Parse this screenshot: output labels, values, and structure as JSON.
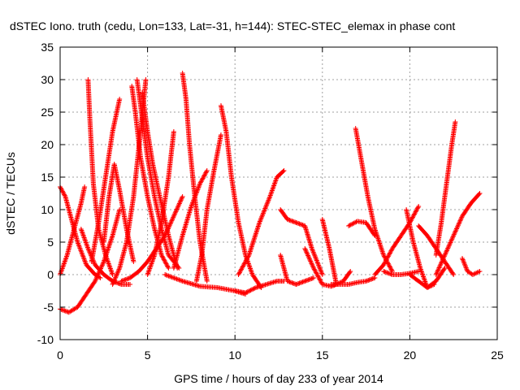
{
  "chart_data": {
    "type": "scatter",
    "title": "dSTEC Iono. truth (cedu, Lon=133, Lat=-31, h=144): STEC-STEC_elemax in phase cont",
    "xlabel": "GPS time / hours of day 233 of year 2014",
    "ylabel": "dSTEC  / TECUs",
    "xlim": [
      0,
      25
    ],
    "ylim": [
      -10,
      35
    ],
    "xticks": [
      0,
      5,
      10,
      15,
      20,
      25
    ],
    "yticks": [
      -10,
      -5,
      0,
      5,
      10,
      15,
      20,
      25,
      30,
      35
    ],
    "grid": true,
    "marker": "plus",
    "color": "#ff0000",
    "series": [
      {
        "x": [
          0.0,
          0.5,
          1.0,
          1.5,
          2.0,
          2.5,
          3.0,
          3.4
        ],
        "y": [
          -5.3,
          -5.8,
          -5.0,
          -3.0,
          -1.0,
          2.0,
          6.0,
          10.0
        ]
      },
      {
        "x": [
          0.0,
          0.3,
          0.6,
          1.0,
          1.5,
          2.0,
          2.3
        ],
        "y": [
          13.5,
          12.0,
          9.0,
          5.0,
          1.5,
          0.0,
          -0.5
        ]
      },
      {
        "x": [
          0.0,
          0.4,
          0.8,
          1.2,
          1.4
        ],
        "y": [
          0.0,
          3.0,
          7.0,
          11.0,
          13.5
        ]
      },
      {
        "x": [
          1.2,
          1.6,
          2.0,
          2.5,
          3.0,
          3.5,
          4.0
        ],
        "y": [
          7.0,
          4.0,
          1.5,
          0.0,
          -1.0,
          -1.5,
          -1.5
        ]
      },
      {
        "x": [
          1.6,
          1.7,
          1.9,
          2.2,
          2.6,
          3.0
        ],
        "y": [
          30.0,
          24.0,
          14.0,
          7.0,
          3.0,
          0.0
        ]
      },
      {
        "x": [
          1.8,
          2.2,
          2.6,
          3.0,
          3.4
        ],
        "y": [
          2.0,
          8.0,
          15.0,
          22.0,
          27.0
        ]
      },
      {
        "x": [
          2.5,
          2.8,
          3.1,
          3.4,
          3.8,
          4.2
        ],
        "y": [
          5.0,
          12.0,
          17.0,
          13.0,
          7.0,
          2.0
        ]
      },
      {
        "x": [
          3.0,
          3.4,
          3.8,
          4.2,
          4.6,
          4.9
        ],
        "y": [
          -1.5,
          1.0,
          5.0,
          12.0,
          22.0,
          30.0
        ]
      },
      {
        "x": [
          4.1,
          4.3,
          4.6,
          5.0,
          5.4,
          5.8,
          6.2
        ],
        "y": [
          29.0,
          25.0,
          18.0,
          12.0,
          7.0,
          3.0,
          1.0
        ]
      },
      {
        "x": [
          4.4,
          4.7,
          5.0,
          5.4,
          5.8,
          6.2,
          6.8
        ],
        "y": [
          30.0,
          24.0,
          18.0,
          12.0,
          7.0,
          3.0,
          1.0
        ]
      },
      {
        "x": [
          4.7,
          5.0,
          5.3,
          5.7,
          6.2,
          6.7
        ],
        "y": [
          28.0,
          22.0,
          17.0,
          12.0,
          6.0,
          1.0
        ]
      },
      {
        "x": [
          5.0,
          5.4,
          5.8,
          6.2,
          6.5
        ],
        "y": [
          0.0,
          3.0,
          8.0,
          15.0,
          22.0
        ]
      },
      {
        "x": [
          3.5,
          4.0,
          4.5,
          5.0,
          5.5,
          6.0,
          6.5,
          7.0
        ],
        "y": [
          -1.0,
          -0.5,
          0.5,
          2.0,
          4.0,
          6.0,
          9.0,
          12.0
        ]
      },
      {
        "x": [
          7.0,
          7.2,
          7.4,
          7.7,
          8.0,
          8.4
        ],
        "y": [
          31.0,
          27.0,
          20.0,
          12.0,
          5.0,
          -1.0
        ]
      },
      {
        "x": [
          6.5,
          7.0,
          7.5,
          8.0,
          8.4
        ],
        "y": [
          1.0,
          6.0,
          10.5,
          14.0,
          16.0
        ]
      },
      {
        "x": [
          7.8,
          8.1,
          8.4,
          8.8,
          9.2
        ],
        "y": [
          -1.0,
          3.0,
          10.0,
          16.0,
          21.5
        ]
      },
      {
        "x": [
          9.2,
          9.5,
          9.8,
          10.2,
          10.6,
          11.0,
          11.5
        ],
        "y": [
          26.0,
          22.0,
          15.0,
          8.0,
          3.0,
          0.0,
          -2.0
        ]
      },
      {
        "x": [
          6.0,
          7.0,
          8.0,
          9.0,
          10.0,
          10.6
        ],
        "y": [
          0.0,
          -1.0,
          -1.8,
          -2.0,
          -2.5,
          -3.0
        ]
      },
      {
        "x": [
          10.0,
          10.6,
          11.2,
          11.8,
          12.4,
          12.8
        ],
        "y": [
          -2.5,
          -2.8,
          -2.0,
          -1.5,
          -1.0,
          -1.0
        ]
      },
      {
        "x": [
          10.2,
          10.8,
          11.4,
          12.0,
          12.4,
          12.8
        ],
        "y": [
          0.0,
          3.0,
          8.0,
          12.0,
          15.0,
          16.0
        ]
      },
      {
        "x": [
          12.6,
          13.0,
          13.5,
          14.0,
          14.4,
          15.0
        ],
        "y": [
          10.0,
          8.5,
          8.0,
          7.5,
          4.0,
          0.0
        ]
      },
      {
        "x": [
          12.6,
          13.0,
          13.5,
          14.0,
          14.5
        ],
        "y": [
          3.0,
          -1.0,
          -1.5,
          -1.0,
          -0.5
        ]
      },
      {
        "x": [
          14.0,
          14.5,
          15.0,
          15.5,
          15.8
        ],
        "y": [
          4.0,
          1.0,
          -1.5,
          -1.8,
          -1.5
        ]
      },
      {
        "x": [
          15.0,
          15.4,
          15.8,
          16.2,
          16.6
        ],
        "y": [
          8.5,
          4.0,
          -1.5,
          -1.0,
          0.5
        ]
      },
      {
        "x": [
          15.5,
          16.0,
          16.5,
          17.0,
          17.5,
          18.0
        ],
        "y": [
          -1.5,
          -1.5,
          -1.5,
          -1.2,
          -1.0,
          -0.5
        ]
      },
      {
        "x": [
          16.5,
          17.0,
          17.5,
          18.0
        ],
        "y": [
          7.5,
          8.2,
          8.0,
          6.0
        ]
      },
      {
        "x": [
          16.9,
          17.2,
          17.6,
          18.0,
          18.5,
          19.0
        ],
        "y": [
          22.5,
          18.0,
          12.0,
          7.0,
          3.0,
          0.5
        ]
      },
      {
        "x": [
          18.0,
          18.5,
          19.0,
          19.5,
          20.0,
          20.5
        ],
        "y": [
          0.0,
          1.5,
          4.0,
          6.0,
          8.0,
          10.5
        ]
      },
      {
        "x": [
          19.8,
          20.2,
          20.6,
          21.0,
          21.4
        ],
        "y": [
          10.0,
          5.0,
          1.0,
          -2.0,
          -1.5
        ]
      },
      {
        "x": [
          20.0,
          20.5,
          21.0,
          21.5,
          22.0
        ],
        "y": [
          0.0,
          -1.0,
          -2.0,
          -1.0,
          1.0
        ]
      },
      {
        "x": [
          20.5,
          21.0,
          21.5,
          22.0,
          22.5
        ],
        "y": [
          7.5,
          6.0,
          4.0,
          2.0,
          0.0
        ]
      },
      {
        "x": [
          21.5,
          21.8,
          22.1,
          22.4,
          22.6
        ],
        "y": [
          3.0,
          8.0,
          14.0,
          20.0,
          23.5
        ]
      },
      {
        "x": [
          21.5,
          22.0,
          22.5,
          23.0,
          23.5,
          24.0
        ],
        "y": [
          0.0,
          3.0,
          6.0,
          9.0,
          11.0,
          12.5
        ]
      },
      {
        "x": [
          23.0,
          23.3,
          23.6,
          24.0
        ],
        "y": [
          2.5,
          0.5,
          0.0,
          0.5
        ]
      },
      {
        "x": [
          18.5,
          19.0,
          19.5,
          20.0,
          20.5
        ],
        "y": [
          0.5,
          0.0,
          0.0,
          0.2,
          0.5
        ]
      }
    ]
  }
}
